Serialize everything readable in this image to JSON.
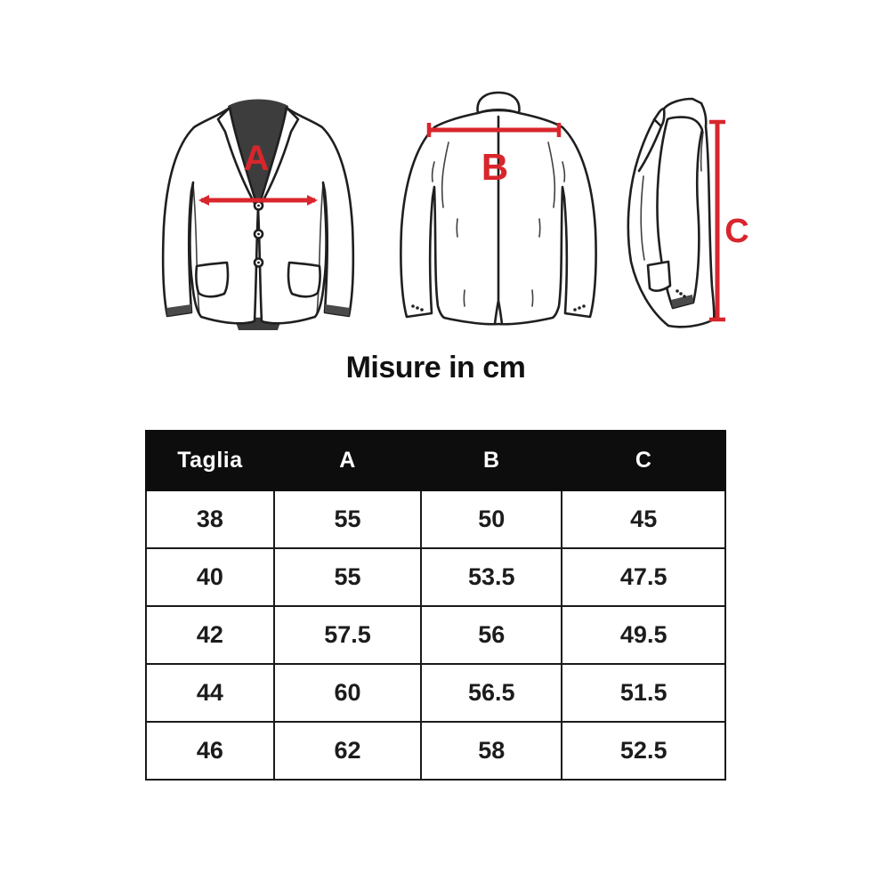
{
  "page": {
    "title": "Misure in cm",
    "background": "#ffffff"
  },
  "diagram": {
    "accent_color": "#d8262c",
    "line_color": "#1f1f1f",
    "shirt_color": "#3d3d3d",
    "views": [
      {
        "name": "jacket-front-view",
        "label": "A"
      },
      {
        "name": "jacket-back-view",
        "label": "B"
      },
      {
        "name": "jacket-side-view",
        "label": "C"
      }
    ]
  },
  "table": {
    "headers": [
      "Taglia",
      "A",
      "B",
      "C"
    ],
    "rows": [
      [
        "38",
        "55",
        "50",
        "45"
      ],
      [
        "40",
        "55",
        "53.5",
        "47.5"
      ],
      [
        "42",
        "57.5",
        "56",
        "49.5"
      ],
      [
        "44",
        "60",
        "56.5",
        "51.5"
      ],
      [
        "46",
        "62",
        "58",
        "52.5"
      ]
    ]
  },
  "chart_data": {
    "type": "table",
    "title": "Misure in cm",
    "columns": [
      "Taglia",
      "A",
      "B",
      "C"
    ],
    "rows": [
      [
        38,
        55,
        50,
        45
      ],
      [
        40,
        55,
        53.5,
        47.5
      ],
      [
        42,
        57.5,
        56,
        49.5
      ],
      [
        44,
        60,
        56.5,
        51.5
      ],
      [
        46,
        62,
        58,
        52.5
      ]
    ],
    "units": "cm"
  }
}
